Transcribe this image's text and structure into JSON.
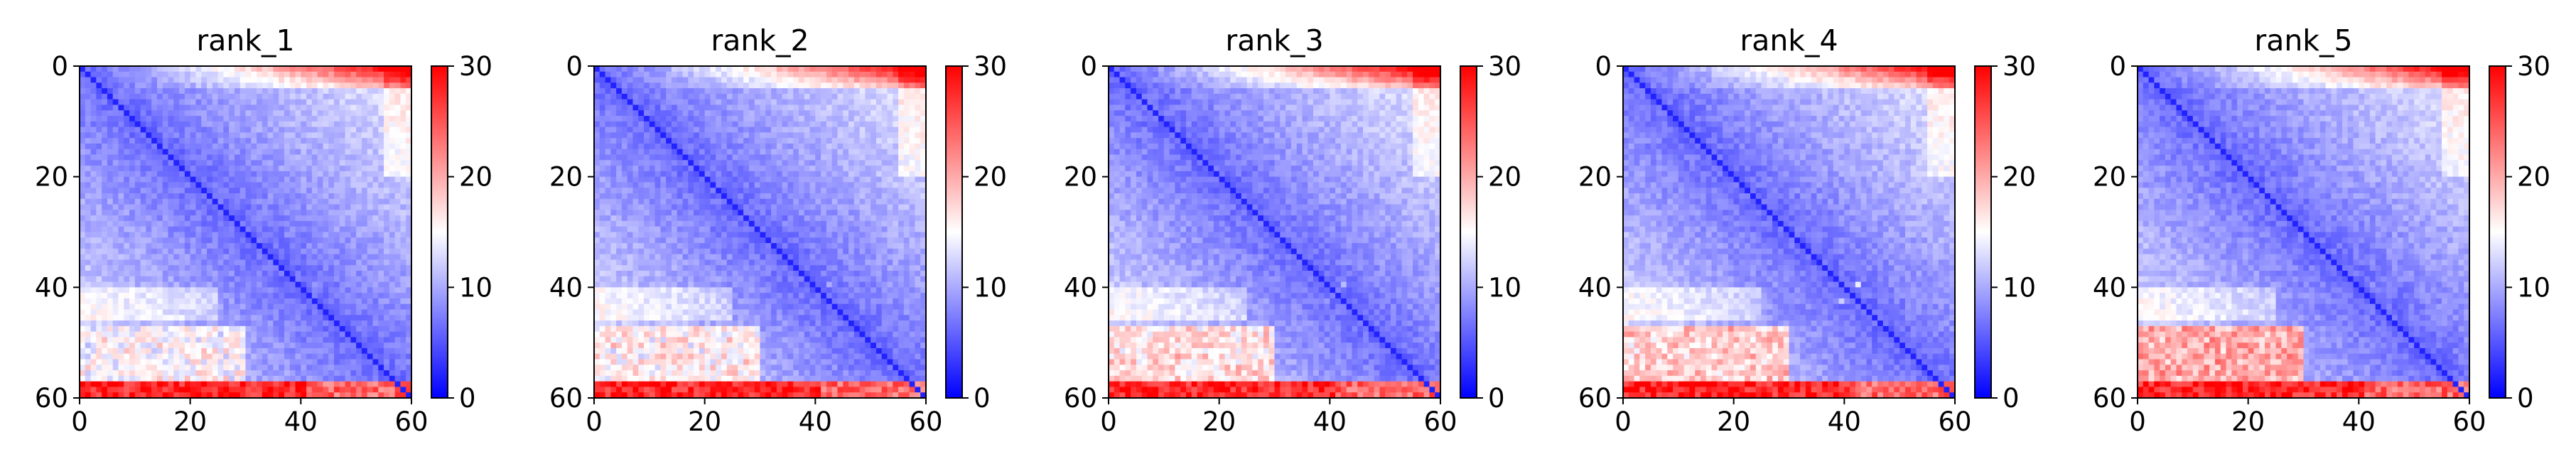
{
  "chart_data": [
    {
      "type": "heatmap",
      "title": "rank_1",
      "matrix_size": 60,
      "xlim": [
        0,
        60
      ],
      "ylim": [
        60,
        0
      ],
      "xticks": [
        "0",
        "20",
        "40",
        "60"
      ],
      "yticks": [
        "0",
        "20",
        "40",
        "60"
      ],
      "colorbar": {
        "range": [
          0,
          30
        ],
        "ticks": [
          "0",
          "10",
          "20",
          "30"
        ],
        "colormap": "bwr"
      },
      "pattern": {
        "diagonal": 2,
        "core_min": 6,
        "core_max": 14,
        "top_edge": 28,
        "bottom_edge": 30,
        "lower_block_rows": [
          47,
          57
        ],
        "lower_block_level": 16,
        "outlier": [
          39,
          42,
          9
        ]
      }
    },
    {
      "type": "heatmap",
      "title": "rank_2",
      "matrix_size": 60,
      "xlim": [
        0,
        60
      ],
      "ylim": [
        60,
        0
      ],
      "xticks": [
        "0",
        "20",
        "40",
        "60"
      ],
      "yticks": [
        "0",
        "20",
        "40",
        "60"
      ],
      "colorbar": {
        "range": [
          0,
          30
        ],
        "ticks": [
          "0",
          "10",
          "20",
          "30"
        ],
        "colormap": "bwr"
      },
      "pattern": {
        "diagonal": 2,
        "core_min": 6,
        "core_max": 14,
        "top_edge": 28,
        "bottom_edge": 30,
        "lower_block_rows": [
          47,
          57
        ],
        "lower_block_level": 17,
        "outlier": [
          39,
          42,
          10
        ]
      }
    },
    {
      "type": "heatmap",
      "title": "rank_3",
      "matrix_size": 60,
      "xlim": [
        0,
        60
      ],
      "ylim": [
        60,
        0
      ],
      "xticks": [
        "0",
        "20",
        "40",
        "60"
      ],
      "yticks": [
        "0",
        "20",
        "40",
        "60"
      ],
      "colorbar": {
        "range": [
          0,
          30
        ],
        "ticks": [
          "0",
          "10",
          "20",
          "30"
        ],
        "colormap": "bwr"
      },
      "pattern": {
        "diagonal": 2,
        "core_min": 6,
        "core_max": 14,
        "top_edge": 29,
        "bottom_edge": 30,
        "lower_block_rows": [
          47,
          57
        ],
        "lower_block_level": 18,
        "outlier": [
          39,
          42,
          11
        ]
      }
    },
    {
      "type": "heatmap",
      "title": "rank_4",
      "matrix_size": 60,
      "xlim": [
        0,
        60
      ],
      "ylim": [
        60,
        0
      ],
      "xticks": [
        "0",
        "20",
        "40",
        "60"
      ],
      "yticks": [
        "0",
        "20",
        "40",
        "60"
      ],
      "colorbar": {
        "range": [
          0,
          30
        ],
        "ticks": [
          "0",
          "10",
          "20",
          "30"
        ],
        "colormap": "bwr"
      },
      "pattern": {
        "diagonal": 2,
        "core_min": 6,
        "core_max": 14,
        "top_edge": 28,
        "bottom_edge": 30,
        "lower_block_rows": [
          47,
          57
        ],
        "lower_block_level": 19,
        "outlier": [
          39,
          42,
          14
        ]
      }
    },
    {
      "type": "heatmap",
      "title": "rank_5",
      "matrix_size": 60,
      "xlim": [
        0,
        60
      ],
      "ylim": [
        60,
        0
      ],
      "xticks": [
        "0",
        "20",
        "40",
        "60"
      ],
      "yticks": [
        "0",
        "20",
        "40",
        "60"
      ],
      "colorbar": {
        "range": [
          0,
          30
        ],
        "ticks": [
          "0",
          "10",
          "20",
          "30"
        ],
        "colormap": "bwr"
      },
      "pattern": {
        "diagonal": 2,
        "core_min": 6,
        "core_max": 14,
        "top_edge": 28,
        "bottom_edge": 30,
        "lower_block_rows": [
          47,
          57
        ],
        "lower_block_level": 21,
        "outlier": [
          39,
          42,
          9
        ]
      }
    }
  ]
}
